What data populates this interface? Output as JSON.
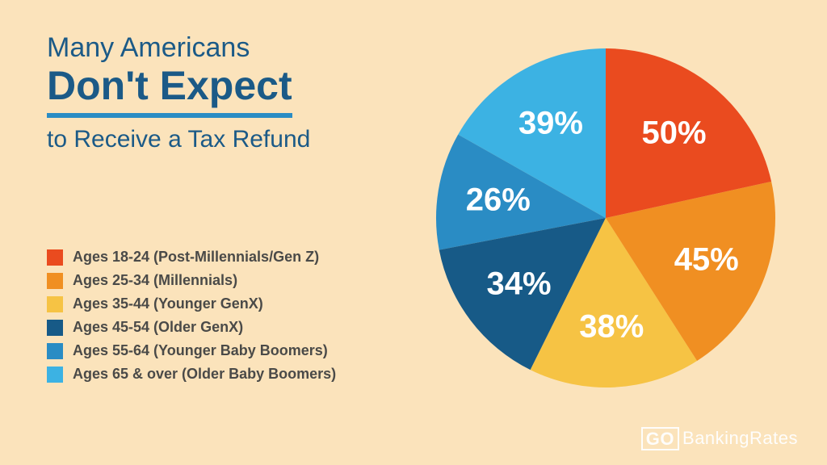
{
  "background_color": "#fbe3bb",
  "title": {
    "line1": "Many Americans",
    "line2": "Don't Expect",
    "line3": "to Receive a Tax Refund",
    "color": "#1b5a87",
    "underline_color": "#2a8cc4",
    "underline_width": 6,
    "line1_fontsize": 34,
    "line2_fontsize": 50,
    "line3_fontsize": 30
  },
  "legend": {
    "text_color": "#4a4a48",
    "fontsize": 18,
    "items": [
      {
        "color": "#ea4b1f",
        "label": "Ages 18-24 (Post-Millennials/Gen Z)"
      },
      {
        "color": "#f08f22",
        "label": "Ages 25-34 (Millennials)"
      },
      {
        "color": "#f6c344",
        "label": "Ages 35-44 (Younger GenX)"
      },
      {
        "color": "#175a87",
        "label": "Ages 45-54 (Older GenX)"
      },
      {
        "color": "#2a8cc4",
        "label": "Ages 55-64 (Younger Baby Boomers)"
      },
      {
        "color": "#3cb2e3",
        "label": "Ages 65 & over (Older Baby Boomers)"
      }
    ]
  },
  "pie": {
    "type": "pie",
    "radius": 210,
    "label_radius": 135,
    "label_fontsize": 40,
    "label_color": "#ffffff",
    "start_angle_deg": -90,
    "direction": "ccw",
    "slices": [
      {
        "label": "39%",
        "value": 39,
        "color": "#3cb2e3"
      },
      {
        "label": "26%",
        "value": 26,
        "color": "#2a8cc4"
      },
      {
        "label": "34%",
        "value": 34,
        "color": "#175a87"
      },
      {
        "label": "38%",
        "value": 38,
        "color": "#f6c344"
      },
      {
        "label": "45%",
        "value": 45,
        "color": "#f08f22"
      },
      {
        "label": "50%",
        "value": 50,
        "color": "#ea4b1f"
      }
    ]
  },
  "logo": {
    "go": "GO",
    "rest": "BankingRates",
    "color": "#ffffff"
  }
}
